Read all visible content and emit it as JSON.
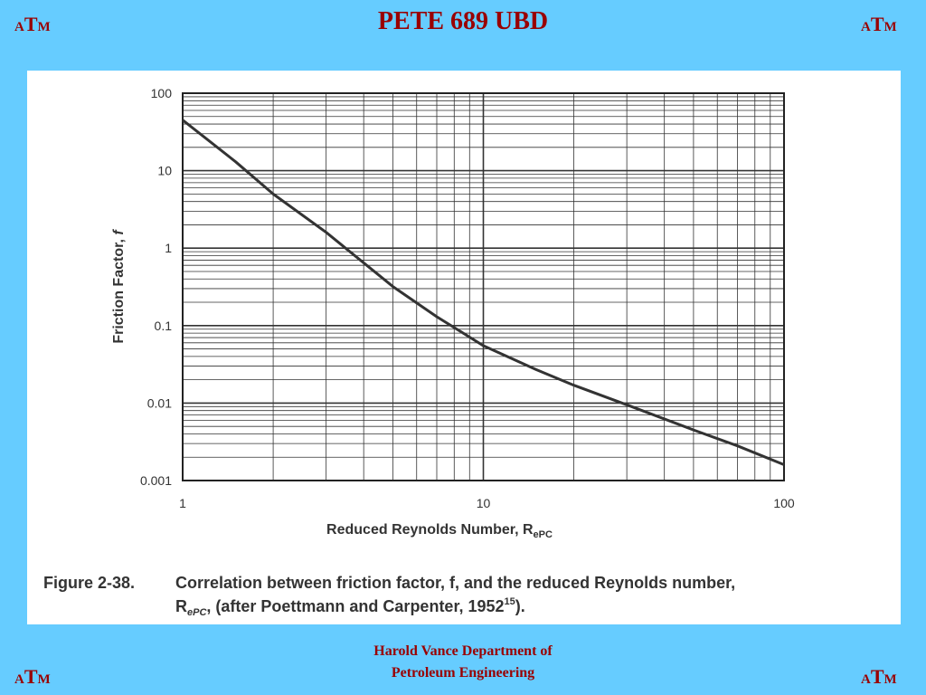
{
  "slide": {
    "title": "PETE 689 UBD",
    "logo": {
      "left_letter": "A",
      "mid_letter": "T",
      "right_letter": "M"
    },
    "footer_line1": "Harold Vance Department of",
    "footer_line2": "Petroleum Engineering",
    "background_color": "#66ccff",
    "accent_color": "#990000"
  },
  "chart_data": {
    "type": "line",
    "x_scale": "log",
    "y_scale": "log",
    "xlim": [
      1,
      100
    ],
    "ylim": [
      0.001,
      100
    ],
    "x_ticks": [
      "1",
      "10",
      "100"
    ],
    "y_ticks": [
      "100",
      "10",
      "1",
      "0.1",
      "0.01",
      "0.001"
    ],
    "xlabel": "Reduced Reynolds Number, R",
    "xlabel_sub": "ePC",
    "ylabel": "Friction Factor, ",
    "ylabel_var": "f",
    "grid": true,
    "series": [
      {
        "x": [
          1,
          1.5,
          2,
          3,
          5,
          7,
          10,
          15,
          20,
          30,
          50,
          70,
          100
        ],
        "y": [
          45,
          13,
          5,
          1.6,
          0.32,
          0.13,
          0.055,
          0.027,
          0.017,
          0.0095,
          0.0045,
          0.0028,
          0.0016
        ]
      }
    ],
    "caption": {
      "label": "Figure 2-38.",
      "line1": "Correlation between friction factor, f, and the reduced Reynolds number,",
      "line2_symbol": "R",
      "line2_sub": "ePC",
      "line2_text": ", (after Poettmann and Carpenter, 1952",
      "line2_sup": "15",
      "line2_end": ")."
    }
  }
}
